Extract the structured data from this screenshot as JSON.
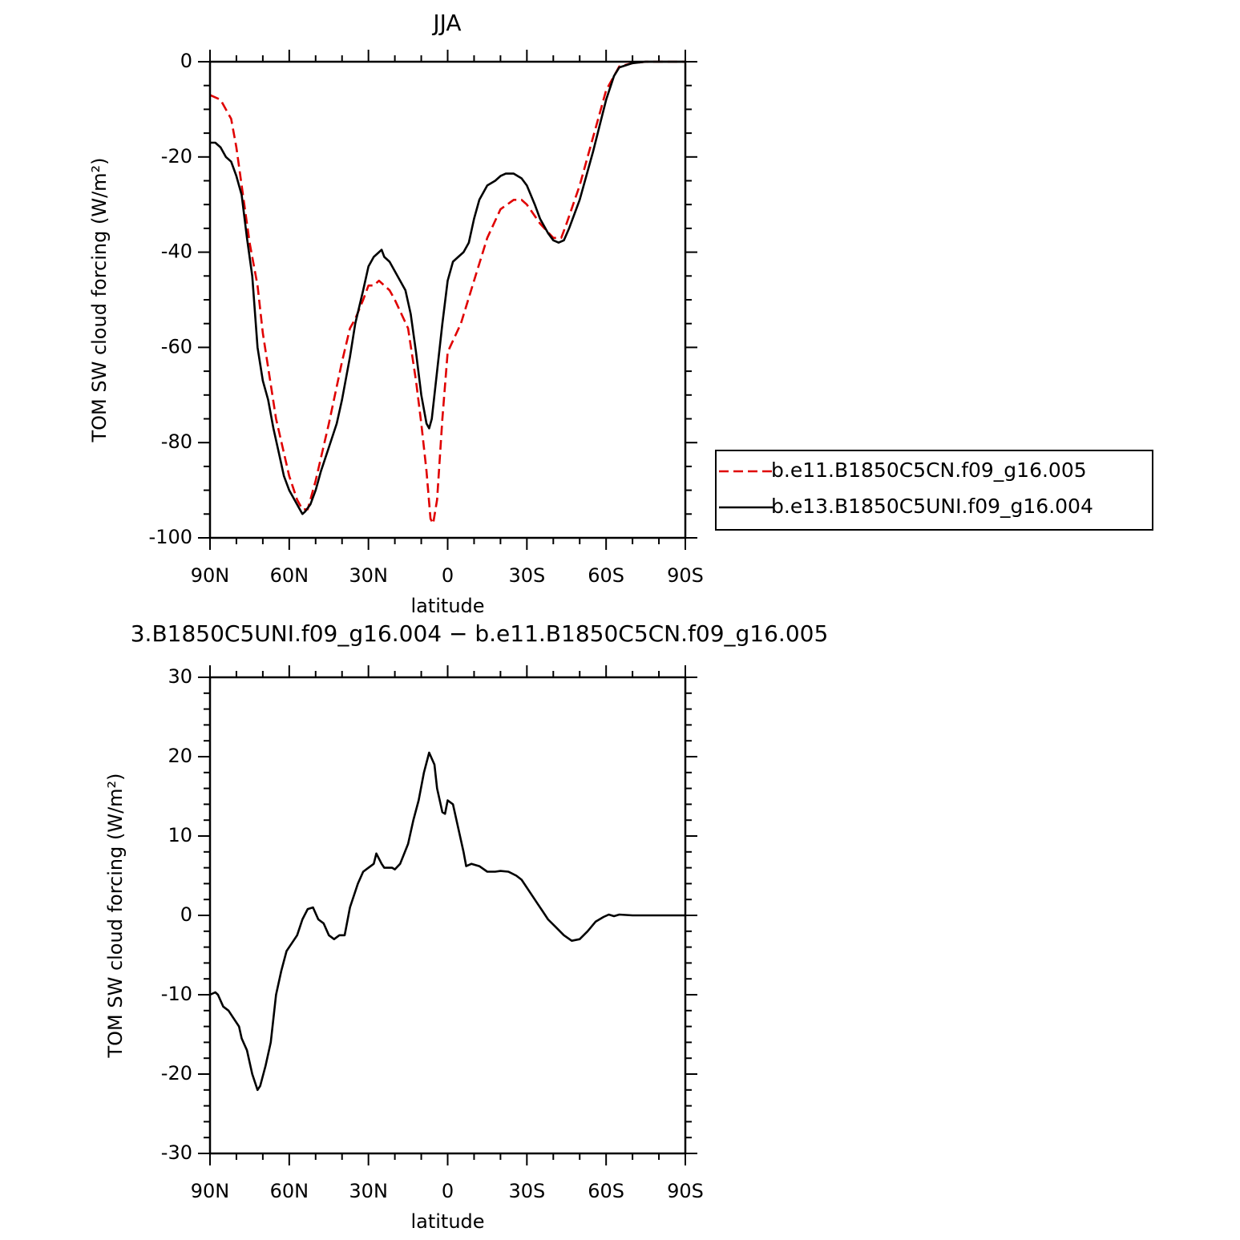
{
  "chart_data": [
    {
      "type": "line",
      "title": "JJA",
      "xlabel": "latitude",
      "ylabel": "TOM SW cloud forcing (W/m²)",
      "xlim": [
        90,
        -90
      ],
      "xticks": [
        {
          "value": 90,
          "label": "90N"
        },
        {
          "value": 60,
          "label": "60N"
        },
        {
          "value": 30,
          "label": "30N"
        },
        0,
        {
          "value": -30,
          "label": "30S"
        },
        {
          "value": -60,
          "label": "60S"
        },
        {
          "value": -90,
          "label": "90S"
        }
      ],
      "ylim": [
        -100,
        0
      ],
      "yticks": [
        -100,
        -80,
        -60,
        -40,
        -20,
        0
      ],
      "legend": "right",
      "series": [
        {
          "name": "b.e11.B1850C5CN.f09_g16.005",
          "color": "#e00000",
          "dash": true,
          "x": [
            90,
            86,
            82,
            80,
            77,
            75,
            72,
            70,
            65,
            60,
            57,
            55,
            53,
            50,
            45,
            40,
            37,
            35,
            32,
            30,
            28,
            26,
            22,
            20,
            15,
            12,
            10,
            8,
            6.5,
            5.5,
            4,
            2,
            0,
            -5,
            -10,
            -15,
            -20,
            -25,
            -28,
            -30,
            -35,
            -40,
            -43,
            -45,
            -50,
            -55,
            -60,
            -65,
            -70,
            -75,
            -90
          ],
          "values": [
            -7,
            -8,
            -12,
            -18,
            -30,
            -38,
            -47,
            -57,
            -75,
            -87,
            -92,
            -94,
            -94,
            -88,
            -76,
            -63,
            -56,
            -54,
            -50,
            -47,
            -47,
            -46,
            -48,
            -50,
            -56,
            -67,
            -76,
            -86,
            -96,
            -97,
            -92,
            -75,
            -61,
            -55,
            -46,
            -37,
            -31,
            -29,
            -29,
            -30,
            -34,
            -37,
            -37,
            -34,
            -26,
            -16,
            -6,
            -1,
            -0.3,
            0,
            0
          ]
        },
        {
          "name": "b.e13.B1850C5UNI.f09_g16.004",
          "color": "#000000",
          "dash": false,
          "x": [
            90,
            88,
            86,
            84,
            82,
            80,
            78,
            76,
            74,
            72,
            70,
            68,
            66,
            64,
            62,
            60,
            58,
            56,
            55,
            54,
            52,
            50,
            48,
            45,
            42,
            40,
            37,
            35,
            32,
            30,
            28,
            26,
            25,
            24,
            22,
            20,
            18,
            16,
            14,
            12,
            10,
            8,
            7,
            6,
            4,
            2,
            0,
            -2,
            -4,
            -6,
            -8,
            -10,
            -12,
            -15,
            -18,
            -20,
            -22,
            -25,
            -28,
            -30,
            -33,
            -35,
            -38,
            -40,
            -42,
            -44,
            -46,
            -50,
            -55,
            -60,
            -63,
            -65,
            -70,
            -75,
            -90
          ],
          "values": [
            -17,
            -17,
            -18,
            -20,
            -21,
            -24,
            -28,
            -37,
            -45,
            -60,
            -67,
            -71,
            -77,
            -82,
            -87,
            -90,
            -92,
            -94,
            -95,
            -94.5,
            -93,
            -90,
            -86,
            -81,
            -76,
            -71,
            -62,
            -55,
            -48,
            -43,
            -41,
            -40,
            -39.5,
            -41,
            -42,
            -44,
            -46,
            -48,
            -53,
            -61,
            -70,
            -76,
            -77,
            -75,
            -65,
            -55,
            -46,
            -42,
            -41,
            -40,
            -38,
            -33,
            -29,
            -26,
            -25,
            -24,
            -23.5,
            -23.5,
            -24.5,
            -26,
            -30,
            -33,
            -36,
            -37.5,
            -38,
            -37.5,
            -35,
            -29,
            -19,
            -8,
            -3,
            -1.2,
            -0.3,
            0,
            0
          ]
        }
      ]
    },
    {
      "type": "line",
      "title": "3.B1850C5UNI.f09_g16.004 − b.e11.B1850C5CN.f09_g16.005",
      "xlabel": "latitude",
      "ylabel": "TOM SW cloud forcing (W/m²)",
      "xlim": [
        90,
        -90
      ],
      "xticks": [
        {
          "value": 90,
          "label": "90N"
        },
        {
          "value": 60,
          "label": "60N"
        },
        {
          "value": 30,
          "label": "30N"
        },
        0,
        {
          "value": -30,
          "label": "30S"
        },
        {
          "value": -60,
          "label": "60S"
        },
        {
          "value": -90,
          "label": "90S"
        }
      ],
      "ylim": [
        -30,
        30
      ],
      "yticks": [
        -30,
        -20,
        -10,
        0,
        10,
        20,
        30
      ],
      "series": [
        {
          "color": "#000000",
          "dash": false,
          "x": [
            90,
            88,
            87,
            85,
            83,
            81,
            79,
            78,
            76,
            74,
            72,
            71,
            69,
            67,
            65,
            63,
            61,
            59,
            57,
            55,
            53,
            51,
            49,
            47,
            45,
            43,
            41,
            39,
            37,
            34,
            32,
            30,
            28,
            27,
            25,
            24,
            21,
            20,
            18,
            15,
            13,
            11,
            9,
            7,
            5,
            4,
            2,
            1,
            0,
            -2,
            -4,
            -6,
            -7,
            -9,
            -12,
            -15,
            -18,
            -20,
            -23,
            -26,
            -28,
            -31,
            -34,
            -36,
            -38,
            -41,
            -44,
            -47,
            -50,
            -53,
            -56,
            -59,
            -61,
            -63,
            -65,
            -70,
            -90
          ],
          "values": [
            -10,
            -9.7,
            -10,
            -11.5,
            -12,
            -13,
            -14,
            -15.5,
            -17,
            -20,
            -22,
            -21.5,
            -19,
            -16,
            -10,
            -7,
            -4.5,
            -3.5,
            -2.5,
            -0.5,
            0.8,
            1,
            -0.5,
            -1,
            -2.5,
            -3,
            -2.5,
            -2.5,
            1,
            4,
            5.5,
            6,
            6.5,
            7.8,
            6.5,
            6,
            6,
            5.8,
            6.5,
            9,
            12,
            14.5,
            18,
            20.5,
            19,
            16,
            13,
            12.8,
            14.5,
            14,
            11,
            8,
            6.2,
            6.5,
            6.2,
            5.5,
            5.5,
            5.6,
            5.5,
            5,
            4.5,
            3,
            1.5,
            0.5,
            -0.5,
            -1.5,
            -2.5,
            -3.2,
            -3,
            -2,
            -0.8,
            -0.2,
            0.1,
            -0.1,
            0.1,
            0,
            0
          ]
        }
      ]
    }
  ]
}
